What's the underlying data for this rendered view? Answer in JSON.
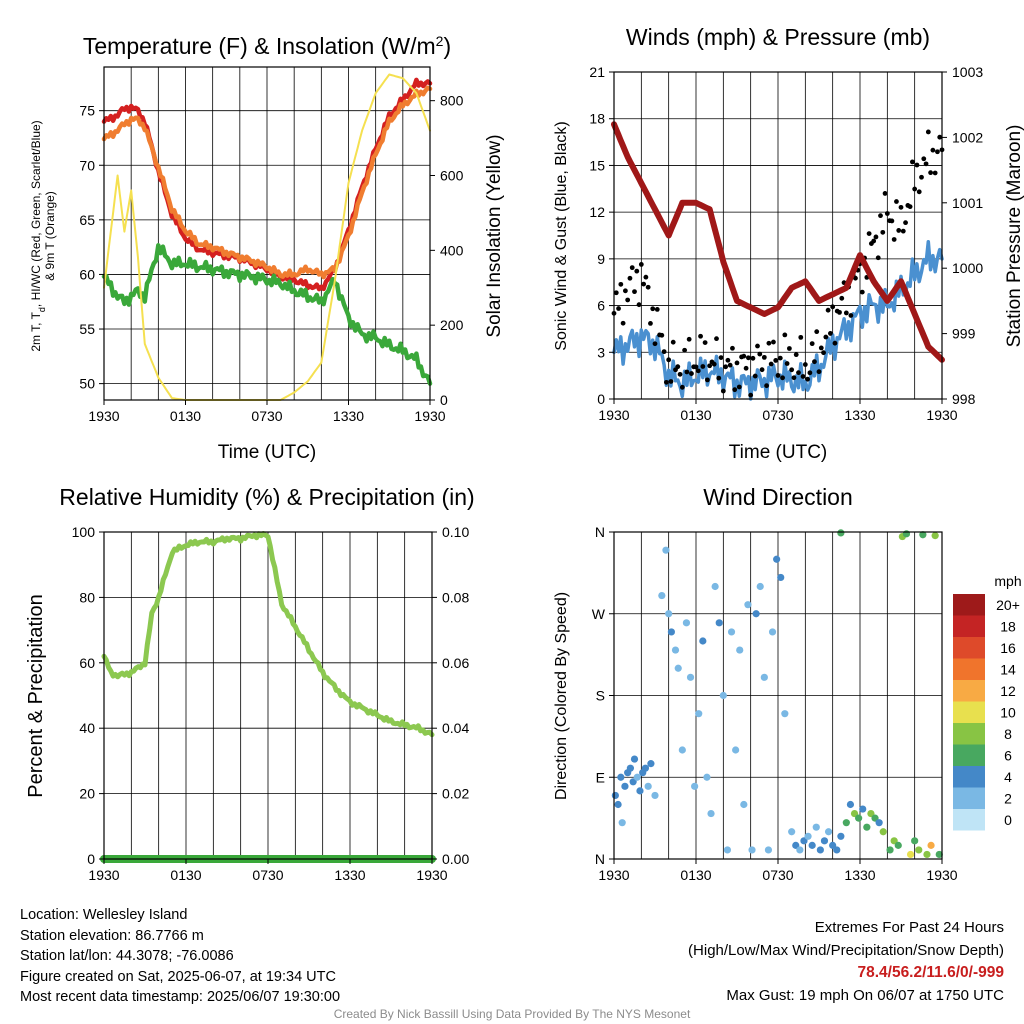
{
  "panels": {
    "temperature": {
      "title_main": "Temperature (F) & Insolation (W/m",
      "title_sup": "2",
      "title_end": ")",
      "ylabel_line1": "2m T, T",
      "ylabel_sub": "d",
      "ylabel_line1_end": ", HI/WC (Red, Green, Scarlet/Blue)",
      "ylabel_line2": "& 9m T (Orange)",
      "y2label": "Solar Insolation (Yellow)",
      "xlabel": "Time (UTC)"
    },
    "winds": {
      "title": "Winds (mph) & Pressure (mb)",
      "ylabel": "Sonic Wind & Gust (Blue, Black)",
      "y2label": "Station Pressure (Maroon)",
      "xlabel": "Time (UTC)"
    },
    "humidity": {
      "title": "Relative Humidity (%) & Precipitation (in)",
      "ylabel": "Percent & Precipitation"
    },
    "direction": {
      "title": "Wind Direction",
      "ylabel": "Direction (Colored By Speed)",
      "legend_title": "mph"
    }
  },
  "chart_data": [
    {
      "type": "line",
      "title": "Temperature (F) & Insolation (W/m2)",
      "xlabel": "Time (UTC)",
      "x_ticks": [
        "1930",
        "0130",
        "0730",
        "1330",
        "1930"
      ],
      "ylabel": "2m T, Td, HI/WC (Red, Green, Scarlet/Blue) & 9m T (Orange)",
      "ylim": [
        48.5,
        79
      ],
      "y_ticks": [
        50,
        55,
        60,
        65,
        70,
        75
      ],
      "y2label": "Solar Insolation (Yellow)",
      "y2lim": [
        0,
        890
      ],
      "y2_ticks": [
        0,
        200,
        400,
        600,
        800
      ],
      "x_hours": [
        0,
        1,
        1.5,
        2,
        2.5,
        3,
        4,
        5,
        6,
        7,
        8,
        9,
        10,
        11,
        12,
        13,
        14,
        15,
        16,
        17,
        18,
        19,
        20,
        21,
        22,
        23,
        24
      ],
      "series": [
        {
          "name": "2m T",
          "color": "#d42020",
          "values": [
            74,
            74.6,
            75.2,
            75.3,
            75,
            74,
            69.5,
            65.5,
            63.3,
            62.3,
            62,
            61.7,
            61.5,
            61,
            60.5,
            59.8,
            59.5,
            59,
            58.7,
            60.5,
            64,
            68,
            71.5,
            74.5,
            76,
            77.5,
            77.5
          ]
        },
        {
          "name": "9m T",
          "color": "#f07d30",
          "values": [
            72.4,
            73.2,
            73.8,
            74.2,
            74.2,
            73.5,
            69.8,
            66,
            64,
            62.8,
            62.5,
            62,
            61.6,
            61.2,
            60.7,
            60,
            60,
            60.5,
            60,
            60.5,
            63.5,
            67.5,
            71,
            74,
            75.5,
            76.5,
            77
          ]
        },
        {
          "name": "2m Td",
          "color": "#3aa83a",
          "values": [
            59.8,
            58,
            57.5,
            58,
            58.5,
            58,
            62.5,
            61,
            61,
            60.7,
            60.5,
            60.2,
            60,
            59.8,
            59.5,
            59.2,
            58.5,
            58,
            57.5,
            59.5,
            56,
            54.5,
            54.2,
            53.5,
            53,
            52.2,
            50
          ]
        },
        {
          "name": "Solar Insolation",
          "color": "#f5e050",
          "axis": "y2",
          "values": [
            300,
            600,
            450,
            560,
            380,
            150,
            60,
            5,
            0,
            0,
            0,
            0,
            0,
            0,
            0,
            0,
            20,
            50,
            100,
            320,
            580,
            720,
            820,
            870,
            860,
            820,
            720
          ]
        }
      ]
    },
    {
      "type": "line",
      "title": "Winds (mph) & Pressure (mb)",
      "xlabel": "Time (UTC)",
      "x_ticks": [
        "1930",
        "0130",
        "0730",
        "1330",
        "1930"
      ],
      "ylabel": "Sonic Wind & Gust (Blue, Black)",
      "ylim": [
        0,
        21
      ],
      "y_ticks": [
        0,
        3,
        6,
        9,
        12,
        15,
        18,
        21
      ],
      "y2label": "Station Pressure (Maroon)",
      "y2lim": [
        998,
        1003
      ],
      "y2_ticks": [
        998,
        999,
        1000,
        1001,
        1002,
        1003
      ],
      "x_hours": [
        0,
        1,
        2,
        3,
        4,
        5,
        6,
        7,
        8,
        9,
        10,
        11,
        12,
        13,
        14,
        15,
        16,
        17,
        18,
        19,
        20,
        21,
        22,
        23,
        24
      ],
      "series": [
        {
          "name": "Sonic Wind",
          "color": "#4a90d0",
          "values": [
            3,
            3.5,
            4,
            3.5,
            1.5,
            1,
            1.5,
            1.8,
            1.5,
            1,
            1,
            1.2,
            1.5,
            1.2,
            1,
            2,
            3.5,
            4.5,
            5.5,
            6,
            6,
            7,
            8,
            9,
            9
          ]
        },
        {
          "name": "Gust",
          "color": "#000000",
          "values": [
            5.5,
            7,
            8,
            5,
            2,
            2,
            2.5,
            2.5,
            2,
            2,
            2,
            2.5,
            2.5,
            2.5,
            2,
            3,
            5,
            6.5,
            8,
            10,
            12,
            11,
            14,
            15.5,
            16
          ]
        },
        {
          "name": "Station Pressure",
          "color": "#a01818",
          "axis": "y2",
          "values": [
            1002.2,
            1001.7,
            1001.3,
            1000.9,
            1000.5,
            1001,
            1001,
            1000.9,
            1000.1,
            999.5,
            999.4,
            999.3,
            999.4,
            999.7,
            999.8,
            999.5,
            999.6,
            999.7,
            1000.2,
            999.8,
            999.5,
            999.8,
            999.3,
            998.8,
            998.6
          ]
        }
      ]
    },
    {
      "type": "line",
      "title": "Relative Humidity (%) & Precipitation (in)",
      "x_ticks": [
        "1930",
        "0130",
        "0730",
        "1330",
        "1930"
      ],
      "ylabel": "Percent & Precipitation",
      "ylim": [
        0,
        100
      ],
      "y_ticks": [
        0,
        20,
        40,
        60,
        80,
        100
      ],
      "y2lim": [
        0,
        0.1
      ],
      "y2_ticks": [
        "0.00",
        "0.02",
        "0.04",
        "0.06",
        "0.08",
        "0.10"
      ],
      "x_hours": [
        0,
        0.5,
        1,
        2,
        3,
        3.5,
        4,
        5,
        6,
        7,
        8,
        9,
        10,
        11,
        12,
        13,
        14,
        15,
        16,
        17,
        18,
        19,
        20,
        21,
        22,
        23,
        24
      ],
      "series": [
        {
          "name": "Relative Humidity",
          "color": "#8cc850",
          "values": [
            62,
            57,
            56,
            57,
            60,
            75,
            80,
            94,
            96,
            97,
            97,
            98,
            98,
            99,
            99,
            78,
            71,
            64,
            57,
            52,
            48,
            46,
            44,
            42,
            41,
            40,
            38
          ]
        },
        {
          "name": "Precipitation",
          "color": "#3aa83a",
          "axis": "y2",
          "values": [
            0,
            0,
            0,
            0,
            0,
            0,
            0,
            0,
            0,
            0,
            0,
            0,
            0,
            0,
            0,
            0,
            0,
            0,
            0,
            0,
            0,
            0,
            0,
            0,
            0,
            0,
            0
          ]
        }
      ]
    },
    {
      "type": "scatter",
      "title": "Wind Direction",
      "x_ticks": [
        "1930",
        "0130",
        "0730",
        "1330",
        "1930"
      ],
      "ylabel": "Direction (Colored By Speed)",
      "y_ticks": [
        "N",
        "E",
        "S",
        "W",
        "N"
      ],
      "ylim_degrees": [
        0,
        360
      ],
      "colorbar_title": "mph",
      "colorbar": [
        {
          "label": "20+",
          "color": "#9e1a1a"
        },
        {
          "label": "18",
          "color": "#c42424"
        },
        {
          "label": "16",
          "color": "#de4a2a"
        },
        {
          "label": "14",
          "color": "#f0742c"
        },
        {
          "label": "12",
          "color": "#f8aa44"
        },
        {
          "label": "10",
          "color": "#e8e04e"
        },
        {
          "label": "8",
          "color": "#88c444"
        },
        {
          "label": "6",
          "color": "#48a860"
        },
        {
          "label": "4",
          "color": "#4488c8"
        },
        {
          "label": "2",
          "color": "#7ab8e4"
        },
        {
          "label": "0",
          "color": "#bfe4f6"
        }
      ],
      "series": [
        {
          "name": "points",
          "points": [
            [
              0.1,
              70,
              4
            ],
            [
              0.3,
              60,
              4
            ],
            [
              0.5,
              90,
              4
            ],
            [
              0.6,
              40,
              2
            ],
            [
              0.8,
              80,
              4
            ],
            [
              1.0,
              95,
              4
            ],
            [
              1.2,
              100,
              4
            ],
            [
              1.4,
              85,
              4
            ],
            [
              1.5,
              110,
              4
            ],
            [
              1.7,
              90,
              2
            ],
            [
              1.9,
              75,
              4
            ],
            [
              2.1,
              95,
              4
            ],
            [
              2.3,
              100,
              4
            ],
            [
              2.5,
              80,
              2
            ],
            [
              2.7,
              105,
              4
            ],
            [
              3.0,
              70,
              2
            ],
            [
              3.5,
              290,
              2
            ],
            [
              3.8,
              340,
              2
            ],
            [
              4.0,
              270,
              2
            ],
            [
              4.2,
              250,
              4
            ],
            [
              4.5,
              230,
              2
            ],
            [
              4.7,
              210,
              2
            ],
            [
              5.0,
              120,
              2
            ],
            [
              5.3,
              260,
              2
            ],
            [
              5.6,
              200,
              2
            ],
            [
              5.9,
              80,
              2
            ],
            [
              6.2,
              160,
              2
            ],
            [
              6.5,
              240,
              4
            ],
            [
              6.8,
              90,
              2
            ],
            [
              7.1,
              50,
              2
            ],
            [
              7.4,
              300,
              2
            ],
            [
              7.7,
              260,
              4
            ],
            [
              8.0,
              180,
              2
            ],
            [
              8.3,
              10,
              2
            ],
            [
              8.6,
              250,
              2
            ],
            [
              8.9,
              120,
              2
            ],
            [
              9.2,
              230,
              2
            ],
            [
              9.5,
              60,
              2
            ],
            [
              9.8,
              280,
              2
            ],
            [
              10.1,
              10,
              2
            ],
            [
              10.4,
              270,
              4
            ],
            [
              10.7,
              300,
              2
            ],
            [
              11.0,
              200,
              2
            ],
            [
              11.3,
              10,
              2
            ],
            [
              11.6,
              250,
              2
            ],
            [
              11.9,
              330,
              4
            ],
            [
              12.2,
              310,
              4
            ],
            [
              12.5,
              160,
              2
            ],
            [
              13.0,
              30,
              2
            ],
            [
              13.3,
              15,
              4
            ],
            [
              13.6,
              10,
              2
            ],
            [
              13.9,
              20,
              4
            ],
            [
              14.2,
              25,
              2
            ],
            [
              14.5,
              15,
              4
            ],
            [
              14.8,
              35,
              2
            ],
            [
              15.1,
              10,
              4
            ],
            [
              15.4,
              20,
              4
            ],
            [
              15.7,
              30,
              2
            ],
            [
              16.0,
              15,
              4
            ],
            [
              16.3,
              10,
              4
            ],
            [
              16.6,
              25,
              4
            ],
            [
              17.0,
              40,
              6
            ],
            [
              17.3,
              60,
              4
            ],
            [
              17.6,
              50,
              8
            ],
            [
              17.9,
              45,
              6
            ],
            [
              18.2,
              55,
              4
            ],
            [
              18.5,
              35,
              6
            ],
            [
              18.8,
              50,
              8
            ],
            [
              19.1,
              45,
              6
            ],
            [
              19.4,
              40,
              4
            ],
            [
              19.7,
              30,
              8
            ],
            [
              20.2,
              10,
              6
            ],
            [
              20.5,
              20,
              8
            ],
            [
              20.8,
              15,
              6
            ],
            [
              21.1,
              355,
              8
            ],
            [
              21.4,
              358,
              6
            ],
            [
              21.7,
              5,
              10
            ],
            [
              22.0,
              20,
              6
            ],
            [
              22.3,
              10,
              8
            ],
            [
              22.6,
              357,
              6
            ],
            [
              22.9,
              5,
              8
            ],
            [
              23.2,
              15,
              12
            ],
            [
              23.5,
              356,
              8
            ],
            [
              23.8,
              5,
              6
            ],
            [
              16.6,
              359,
              6
            ]
          ]
        }
      ]
    }
  ],
  "info": {
    "location": "Location: Wellesley Island",
    "elevation": "Station elevation: 86.7766 m",
    "latlon": "Station lat/lon: 44.3078; -76.0086",
    "created": "Figure created on Sat, 2025-06-07, at 19:34 UTC",
    "recent": "Most recent data timestamp: 2025/06/07 19:30:00"
  },
  "extremes": {
    "title": "Extremes For Past 24 Hours",
    "subtitle": "(High/Low/Max Wind/Precipitation/Snow Depth)",
    "values": "78.4/56.2/11.6/0/-999",
    "gust": "Max Gust: 19 mph On 06/07 at 1750 UTC"
  },
  "credit": "Created By Nick Bassill Using Data Provided By The NYS Mesonet"
}
